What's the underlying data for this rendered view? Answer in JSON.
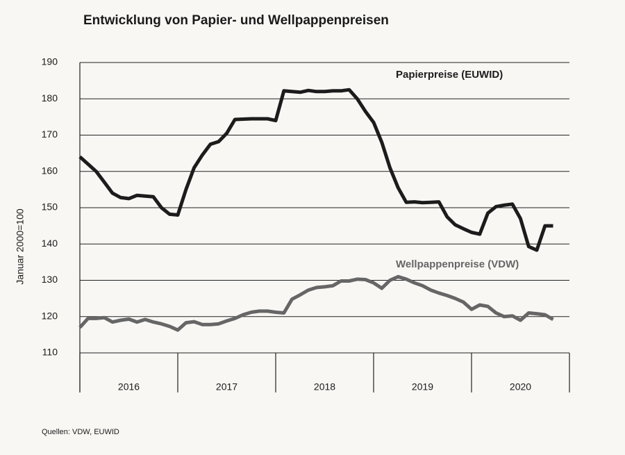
{
  "chart_data": {
    "type": "line",
    "title": "Entwicklung von Papier- und Wellpappenpreisen",
    "y_label": "Januar 2000=100",
    "source": "Quellen: VDW, EUWID",
    "categories": [
      null,
      null,
      null,
      null,
      null,
      null,
      null,
      null,
      null,
      null,
      null,
      null,
      null,
      null,
      null,
      null,
      null,
      null,
      null,
      null,
      null,
      null,
      null,
      null,
      null,
      null,
      null,
      null,
      null,
      null,
      null,
      null,
      null,
      null,
      null,
      null,
      null,
      null,
      null,
      null,
      null,
      null,
      null,
      null,
      null,
      null,
      null,
      null,
      null,
      null,
      null,
      null,
      null,
      null,
      null,
      null,
      null,
      null,
      null
    ],
    "x_groups": [
      "2016",
      "2017",
      "2018",
      "2019",
      "2020"
    ],
    "ylim": [
      110,
      190
    ],
    "yticks": [
      110,
      120,
      130,
      140,
      150,
      160,
      170,
      180,
      190
    ],
    "grid": true,
    "series": [
      {
        "name": "Papierpreise (EUWID)",
        "color": "#1c1c1c",
        "values": [
          164,
          162,
          160,
          157,
          154,
          152.8,
          152.5,
          153.4,
          153.2,
          153,
          150,
          148.2,
          148,
          155,
          161,
          164.5,
          167.5,
          168.2,
          170.5,
          174.3,
          174.4,
          174.5,
          174.5,
          174.5,
          174,
          182.2,
          182,
          181.8,
          182.3,
          182,
          182,
          182.2,
          182.2,
          182.5,
          180,
          176.5,
          173.5,
          168,
          161,
          155.5,
          151.5,
          151.6,
          151.4,
          151.5,
          151.6,
          147.5,
          145.3,
          144.2,
          143.2,
          142.7,
          148.5,
          150.3,
          150.7,
          151,
          147,
          139.3,
          138.3,
          145,
          145
        ]
      },
      {
        "name": "Wellpappenpreise (VDW)",
        "color": "#666666",
        "values": [
          117,
          119.5,
          119.5,
          119.7,
          118.5,
          119,
          119.3,
          118.5,
          119.2,
          118.5,
          118,
          117.3,
          116.3,
          118.3,
          118.6,
          117.8,
          117.8,
          118,
          118.8,
          119.5,
          120.5,
          121.2,
          121.5,
          121.5,
          121.2,
          121,
          124.8,
          126,
          127.3,
          128,
          128.2,
          128.5,
          129.8,
          129.8,
          130.3,
          130.2,
          129.3,
          127.8,
          130,
          131,
          130.3,
          129.3,
          128.5,
          127.3,
          126.5,
          125.8,
          125,
          124,
          122,
          123.2,
          122.8,
          121,
          120,
          120.2,
          119,
          121,
          120.8,
          120.5,
          119.2
        ]
      }
    ]
  }
}
